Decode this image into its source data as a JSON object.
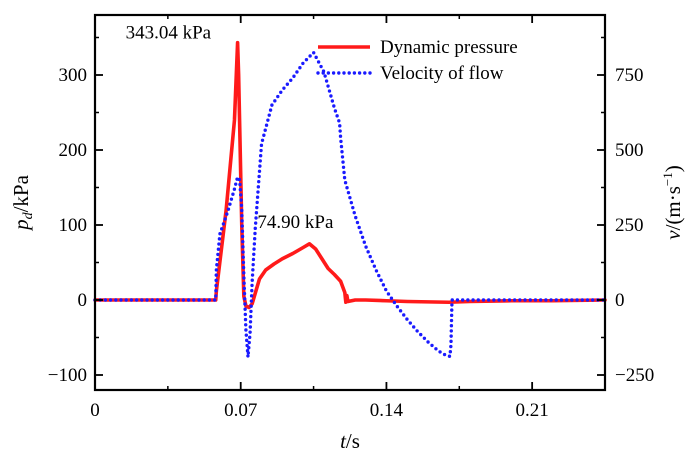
{
  "chart_data": {
    "type": "line",
    "xlabel": {
      "var": "t",
      "unit": "/s"
    },
    "ylabel_left": {
      "var": "p",
      "sub": "d",
      "unit": "/kPa"
    },
    "ylabel_right": {
      "var": "v",
      "unit_pre": "/(m·s",
      "unit_sup": "−1",
      "unit_post": ")"
    },
    "xlim": [
      0,
      0.245
    ],
    "ylim_left": [
      -120,
      380
    ],
    "ylim_right": [
      -300,
      950
    ],
    "x_ticks": [
      0,
      0.07,
      0.14,
      0.21
    ],
    "x_tick_labels": [
      "0",
      "0.07",
      "0.14",
      "0.21"
    ],
    "y_left_ticks": [
      -100,
      0,
      100,
      200,
      300
    ],
    "y_left_tick_labels": [
      "−100",
      "0",
      "100",
      "200",
      "300"
    ],
    "y_right_ticks": [
      -250,
      0,
      250,
      500,
      750
    ],
    "y_right_tick_labels": [
      "−250",
      "0",
      "250",
      "500",
      "750"
    ],
    "grid": false,
    "legend_position": "top-right",
    "series": [
      {
        "name": "Dynamic pressure",
        "axis": "left",
        "color": "#ff1a1a",
        "style": "solid",
        "x": [
          0,
          0.058,
          0.0583,
          0.063,
          0.067,
          0.0685,
          0.069,
          0.0705,
          0.0715,
          0.0725,
          0.074,
          0.0755,
          0.079,
          0.082,
          0.086,
          0.09,
          0.095,
          0.1,
          0.103,
          0.106,
          0.109,
          0.112,
          0.115,
          0.118,
          0.12,
          0.1205,
          0.121,
          0.1215,
          0.125,
          0.13,
          0.14,
          0.15,
          0.16,
          0.17,
          0.18,
          0.2,
          0.22,
          0.245
        ],
        "y": [
          0,
          0,
          12,
          120,
          240,
          343.04,
          300,
          100,
          5,
          -8,
          -10,
          -5,
          28,
          40,
          48,
          55,
          62,
          70,
          74.9,
          68,
          55,
          42,
          34,
          25,
          10,
          -3,
          6,
          -2,
          0,
          0,
          -1,
          -2,
          -2.5,
          -3,
          -2,
          -1,
          -1,
          0
        ]
      },
      {
        "name": "Velocity of flow",
        "axis": "right",
        "color": "#1a1aff",
        "style": "dotted",
        "x": [
          0,
          0.058,
          0.0583,
          0.06,
          0.064,
          0.067,
          0.0685,
          0.0695,
          0.0705,
          0.0715,
          0.0725,
          0.0735,
          0.0745,
          0.0755,
          0.077,
          0.08,
          0.085,
          0.09,
          0.095,
          0.1,
          0.105,
          0.11,
          0.115,
          0.1175,
          0.118,
          0.12,
          0.125,
          0.13,
          0.135,
          0.14,
          0.145,
          0.15,
          0.155,
          0.16,
          0.165,
          0.168,
          0.1705,
          0.171,
          0.1715,
          0.18,
          0.2,
          0.22,
          0.245
        ],
        "y": [
          0,
          0,
          100,
          220,
          300,
          370,
          410,
          400,
          300,
          80,
          -100,
          -190,
          -110,
          60,
          240,
          520,
          650,
          700,
          740,
          790,
          825,
          760,
          640,
          590,
          540,
          400,
          280,
          180,
          100,
          30,
          -20,
          -65,
          -105,
          -140,
          -170,
          -182,
          -188,
          -150,
          0,
          0,
          0,
          0,
          0
        ]
      }
    ],
    "annotations": [
      {
        "text": "343.04 kPa",
        "x": 0.0685,
        "y": 343.04
      },
      {
        "text": "74.90 kPa",
        "x": 0.103,
        "y": 74.9
      }
    ]
  }
}
